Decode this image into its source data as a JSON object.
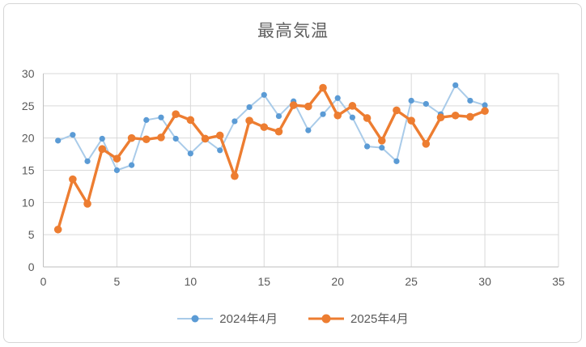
{
  "chart_data": {
    "type": "line",
    "title": "最高気温",
    "x": [
      1,
      2,
      3,
      4,
      5,
      6,
      7,
      8,
      9,
      10,
      11,
      12,
      13,
      14,
      15,
      16,
      17,
      18,
      19,
      20,
      21,
      22,
      23,
      24,
      25,
      26,
      27,
      28,
      29,
      30
    ],
    "series": [
      {
        "name": "2024年4月",
        "values": [
          19.6,
          20.5,
          16.4,
          19.9,
          15.0,
          15.8,
          22.8,
          23.2,
          19.9,
          17.6,
          19.8,
          18.1,
          22.6,
          24.8,
          26.7,
          23.4,
          25.7,
          21.2,
          23.7,
          26.2,
          23.2,
          18.7,
          18.5,
          16.4,
          25.8,
          25.3,
          23.7,
          28.2,
          25.8,
          25.1
        ]
      },
      {
        "name": "2025年4月",
        "values": [
          5.8,
          13.6,
          9.8,
          18.3,
          16.8,
          20.0,
          19.8,
          20.1,
          23.7,
          22.8,
          19.9,
          20.4,
          14.1,
          22.7,
          21.7,
          21.0,
          25.1,
          24.9,
          27.8,
          23.5,
          25.0,
          23.1,
          19.6,
          24.3,
          22.7,
          19.1,
          23.2,
          23.5,
          23.3,
          24.2
        ]
      }
    ],
    "xlim": [
      0,
      35
    ],
    "ylim": [
      0,
      30
    ],
    "x_ticks": [
      0,
      5,
      10,
      15,
      20,
      25,
      30,
      35
    ],
    "y_ticks": [
      0,
      5,
      10,
      15,
      20,
      25,
      30
    ],
    "grid": true,
    "legend_position": "bottom"
  },
  "colors": {
    "series_2024_marker": "#5b9bd5",
    "series_2024_line": "#a9cbe9",
    "series_2025": "#ed7d31",
    "gridline": "#d9d9d9",
    "axis_line": "#bfbfbf",
    "tick_text": "#595959",
    "title_text": "#5f5f5f"
  }
}
